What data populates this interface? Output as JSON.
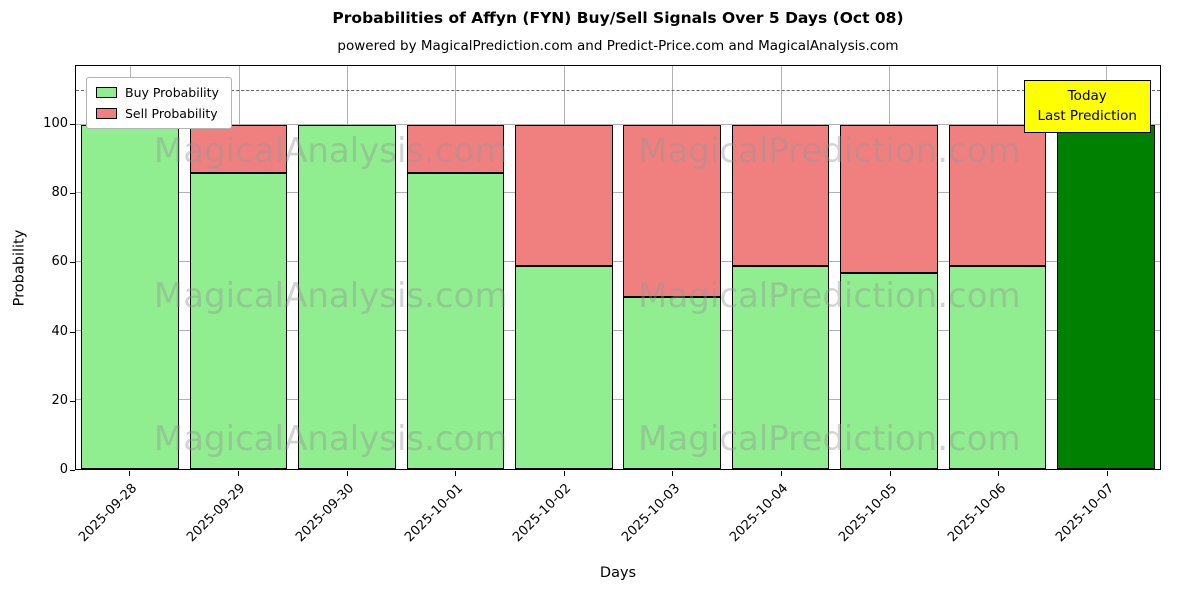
{
  "chart": {
    "title": "Probabilities of Affyn (FYN) Buy/Sell Signals Over 5 Days (Oct 08)",
    "subtitle": "powered by MagicalPrediction.com and Predict-Price.com and MagicalAnalysis.com",
    "xlabel": "Days",
    "ylabel": "Probability"
  },
  "chart_data": {
    "type": "bar",
    "stacked": true,
    "categories": [
      "2025-09-28",
      "2025-09-29",
      "2025-09-30",
      "2025-10-01",
      "2025-10-02",
      "2025-10-03",
      "2025-10-04",
      "2025-10-05",
      "2025-10-06",
      "2025-10-07"
    ],
    "series": [
      {
        "name": "Buy Probability",
        "color": "#90EE90",
        "values": [
          100,
          86,
          100,
          86,
          59,
          50,
          59,
          57,
          59,
          100
        ]
      },
      {
        "name": "Sell Probability",
        "color": "#F08080",
        "values": [
          0,
          14,
          0,
          14,
          41,
          50,
          41,
          43,
          41,
          0
        ]
      }
    ],
    "today_bar": {
      "index": 9,
      "color": "#008000"
    },
    "yticks": [
      0,
      20,
      40,
      60,
      80,
      100
    ],
    "ylim": [
      0,
      117
    ],
    "dashed_line_y": 110,
    "grid": true,
    "legend_position": "upper left"
  },
  "annotation": {
    "line1": "Today",
    "line2": "Last Prediction",
    "bg_color": "#FFFF00"
  },
  "watermarks": [
    "MagicalAnalysis.com",
    "MagicalPrediction.com"
  ]
}
